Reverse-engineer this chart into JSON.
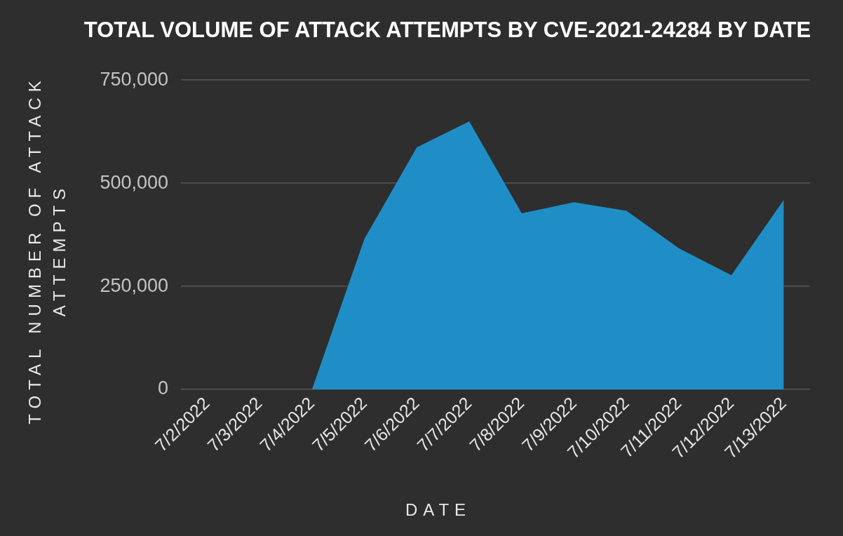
{
  "chart_data": {
    "type": "area",
    "title": "TOTAL VOLUME OF ATTACK ATTEMPTS BY CVE-2021-24284 BY DATE",
    "xlabel": "DATE",
    "ylabel": "TOTAL NUMBER OF ATTACK ATTEMPTS",
    "categories": [
      "7/2/2022",
      "7/3/2022",
      "7/4/2022",
      "7/5/2022",
      "7/6/2022",
      "7/7/2022",
      "7/8/2022",
      "7/9/2022",
      "7/10/2022",
      "7/11/2022",
      "7/12/2022",
      "7/13/2022"
    ],
    "series": [
      {
        "color": "#1f8ec6",
        "values": [
          0,
          0,
          0,
          365000,
          587000,
          650000,
          427000,
          454000,
          433000,
          342000,
          277000,
          460000
        ]
      }
    ],
    "ylim": [
      0,
      750000
    ],
    "yticks": [
      {
        "value": 0,
        "label": "0"
      },
      {
        "value": 250000,
        "label": "250,000"
      },
      {
        "value": 500000,
        "label": "500,000"
      },
      {
        "value": 750000,
        "label": "750,000"
      }
    ],
    "grid": "y"
  }
}
